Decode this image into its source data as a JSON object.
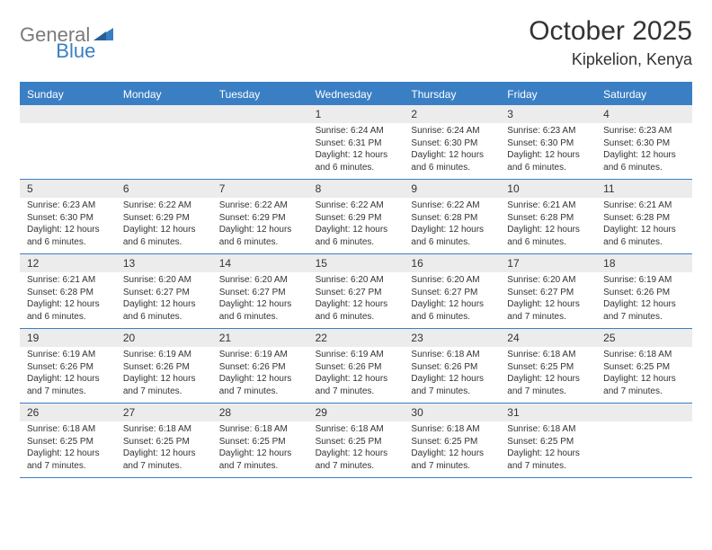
{
  "logo": {
    "part1": "General",
    "part2": "Blue"
  },
  "title": "October 2025",
  "location": "Kipkelion, Kenya",
  "dayNames": [
    "Sunday",
    "Monday",
    "Tuesday",
    "Wednesday",
    "Thursday",
    "Friday",
    "Saturday"
  ],
  "colors": {
    "accent": "#3a7fc4",
    "headerBg": "#3a7fc4",
    "headerText": "#ffffff",
    "dayNumBg": "#ececec",
    "border": "#3a7fc4",
    "logoGray": "#7a7a7a"
  },
  "weeks": [
    [
      {
        "blank": true
      },
      {
        "blank": true
      },
      {
        "blank": true
      },
      {
        "day": "1",
        "sunrise": "Sunrise: 6:24 AM",
        "sunset": "Sunset: 6:31 PM",
        "daylight1": "Daylight: 12 hours",
        "daylight2": "and 6 minutes."
      },
      {
        "day": "2",
        "sunrise": "Sunrise: 6:24 AM",
        "sunset": "Sunset: 6:30 PM",
        "daylight1": "Daylight: 12 hours",
        "daylight2": "and 6 minutes."
      },
      {
        "day": "3",
        "sunrise": "Sunrise: 6:23 AM",
        "sunset": "Sunset: 6:30 PM",
        "daylight1": "Daylight: 12 hours",
        "daylight2": "and 6 minutes."
      },
      {
        "day": "4",
        "sunrise": "Sunrise: 6:23 AM",
        "sunset": "Sunset: 6:30 PM",
        "daylight1": "Daylight: 12 hours",
        "daylight2": "and 6 minutes."
      }
    ],
    [
      {
        "day": "5",
        "sunrise": "Sunrise: 6:23 AM",
        "sunset": "Sunset: 6:30 PM",
        "daylight1": "Daylight: 12 hours",
        "daylight2": "and 6 minutes."
      },
      {
        "day": "6",
        "sunrise": "Sunrise: 6:22 AM",
        "sunset": "Sunset: 6:29 PM",
        "daylight1": "Daylight: 12 hours",
        "daylight2": "and 6 minutes."
      },
      {
        "day": "7",
        "sunrise": "Sunrise: 6:22 AM",
        "sunset": "Sunset: 6:29 PM",
        "daylight1": "Daylight: 12 hours",
        "daylight2": "and 6 minutes."
      },
      {
        "day": "8",
        "sunrise": "Sunrise: 6:22 AM",
        "sunset": "Sunset: 6:29 PM",
        "daylight1": "Daylight: 12 hours",
        "daylight2": "and 6 minutes."
      },
      {
        "day": "9",
        "sunrise": "Sunrise: 6:22 AM",
        "sunset": "Sunset: 6:28 PM",
        "daylight1": "Daylight: 12 hours",
        "daylight2": "and 6 minutes."
      },
      {
        "day": "10",
        "sunrise": "Sunrise: 6:21 AM",
        "sunset": "Sunset: 6:28 PM",
        "daylight1": "Daylight: 12 hours",
        "daylight2": "and 6 minutes."
      },
      {
        "day": "11",
        "sunrise": "Sunrise: 6:21 AM",
        "sunset": "Sunset: 6:28 PM",
        "daylight1": "Daylight: 12 hours",
        "daylight2": "and 6 minutes."
      }
    ],
    [
      {
        "day": "12",
        "sunrise": "Sunrise: 6:21 AM",
        "sunset": "Sunset: 6:28 PM",
        "daylight1": "Daylight: 12 hours",
        "daylight2": "and 6 minutes."
      },
      {
        "day": "13",
        "sunrise": "Sunrise: 6:20 AM",
        "sunset": "Sunset: 6:27 PM",
        "daylight1": "Daylight: 12 hours",
        "daylight2": "and 6 minutes."
      },
      {
        "day": "14",
        "sunrise": "Sunrise: 6:20 AM",
        "sunset": "Sunset: 6:27 PM",
        "daylight1": "Daylight: 12 hours",
        "daylight2": "and 6 minutes."
      },
      {
        "day": "15",
        "sunrise": "Sunrise: 6:20 AM",
        "sunset": "Sunset: 6:27 PM",
        "daylight1": "Daylight: 12 hours",
        "daylight2": "and 6 minutes."
      },
      {
        "day": "16",
        "sunrise": "Sunrise: 6:20 AM",
        "sunset": "Sunset: 6:27 PM",
        "daylight1": "Daylight: 12 hours",
        "daylight2": "and 6 minutes."
      },
      {
        "day": "17",
        "sunrise": "Sunrise: 6:20 AM",
        "sunset": "Sunset: 6:27 PM",
        "daylight1": "Daylight: 12 hours",
        "daylight2": "and 7 minutes."
      },
      {
        "day": "18",
        "sunrise": "Sunrise: 6:19 AM",
        "sunset": "Sunset: 6:26 PM",
        "daylight1": "Daylight: 12 hours",
        "daylight2": "and 7 minutes."
      }
    ],
    [
      {
        "day": "19",
        "sunrise": "Sunrise: 6:19 AM",
        "sunset": "Sunset: 6:26 PM",
        "daylight1": "Daylight: 12 hours",
        "daylight2": "and 7 minutes."
      },
      {
        "day": "20",
        "sunrise": "Sunrise: 6:19 AM",
        "sunset": "Sunset: 6:26 PM",
        "daylight1": "Daylight: 12 hours",
        "daylight2": "and 7 minutes."
      },
      {
        "day": "21",
        "sunrise": "Sunrise: 6:19 AM",
        "sunset": "Sunset: 6:26 PM",
        "daylight1": "Daylight: 12 hours",
        "daylight2": "and 7 minutes."
      },
      {
        "day": "22",
        "sunrise": "Sunrise: 6:19 AM",
        "sunset": "Sunset: 6:26 PM",
        "daylight1": "Daylight: 12 hours",
        "daylight2": "and 7 minutes."
      },
      {
        "day": "23",
        "sunrise": "Sunrise: 6:18 AM",
        "sunset": "Sunset: 6:26 PM",
        "daylight1": "Daylight: 12 hours",
        "daylight2": "and 7 minutes."
      },
      {
        "day": "24",
        "sunrise": "Sunrise: 6:18 AM",
        "sunset": "Sunset: 6:25 PM",
        "daylight1": "Daylight: 12 hours",
        "daylight2": "and 7 minutes."
      },
      {
        "day": "25",
        "sunrise": "Sunrise: 6:18 AM",
        "sunset": "Sunset: 6:25 PM",
        "daylight1": "Daylight: 12 hours",
        "daylight2": "and 7 minutes."
      }
    ],
    [
      {
        "day": "26",
        "sunrise": "Sunrise: 6:18 AM",
        "sunset": "Sunset: 6:25 PM",
        "daylight1": "Daylight: 12 hours",
        "daylight2": "and 7 minutes."
      },
      {
        "day": "27",
        "sunrise": "Sunrise: 6:18 AM",
        "sunset": "Sunset: 6:25 PM",
        "daylight1": "Daylight: 12 hours",
        "daylight2": "and 7 minutes."
      },
      {
        "day": "28",
        "sunrise": "Sunrise: 6:18 AM",
        "sunset": "Sunset: 6:25 PM",
        "daylight1": "Daylight: 12 hours",
        "daylight2": "and 7 minutes."
      },
      {
        "day": "29",
        "sunrise": "Sunrise: 6:18 AM",
        "sunset": "Sunset: 6:25 PM",
        "daylight1": "Daylight: 12 hours",
        "daylight2": "and 7 minutes."
      },
      {
        "day": "30",
        "sunrise": "Sunrise: 6:18 AM",
        "sunset": "Sunset: 6:25 PM",
        "daylight1": "Daylight: 12 hours",
        "daylight2": "and 7 minutes."
      },
      {
        "day": "31",
        "sunrise": "Sunrise: 6:18 AM",
        "sunset": "Sunset: 6:25 PM",
        "daylight1": "Daylight: 12 hours",
        "daylight2": "and 7 minutes."
      },
      {
        "blank": true
      }
    ]
  ]
}
